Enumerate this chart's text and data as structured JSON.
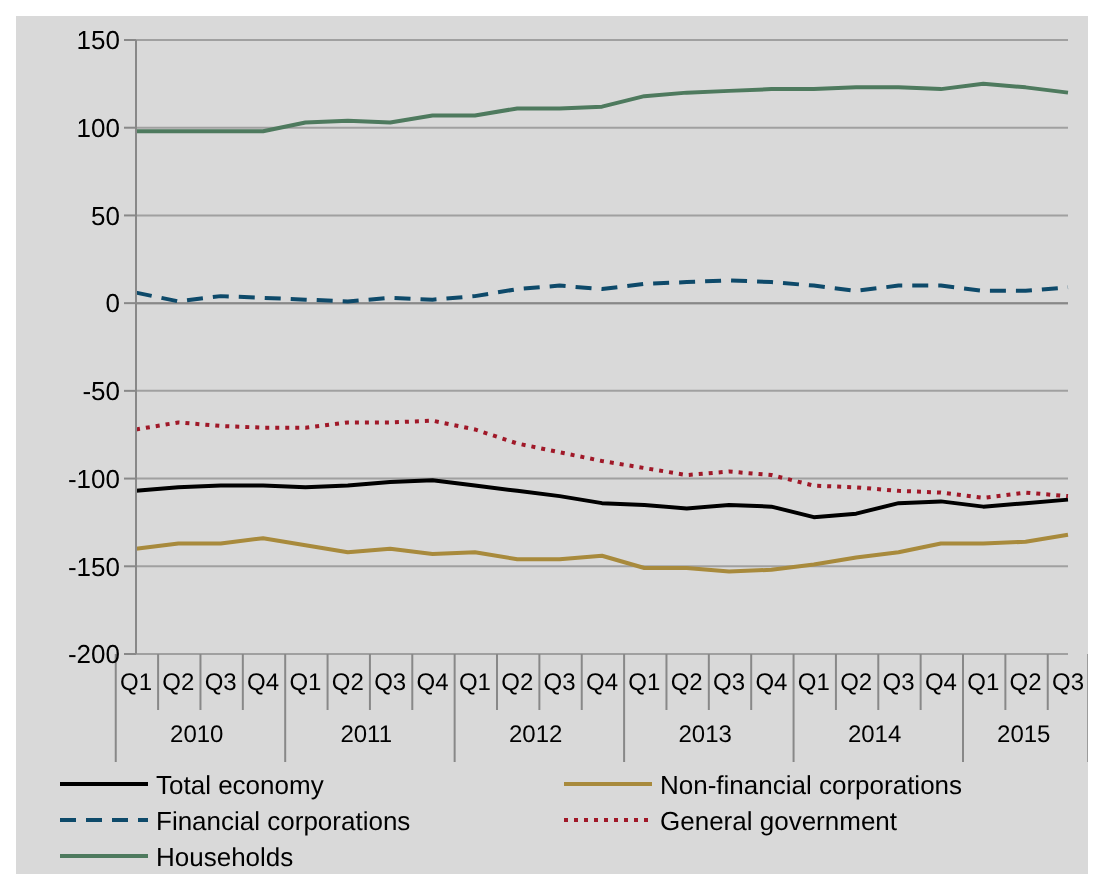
{
  "chart_data": {
    "type": "line",
    "categories": [
      "Q1",
      "Q2",
      "Q3",
      "Q4",
      "Q1",
      "Q2",
      "Q3",
      "Q4",
      "Q1",
      "Q2",
      "Q3",
      "Q4",
      "Q1",
      "Q2",
      "Q3",
      "Q4",
      "Q1",
      "Q2",
      "Q3",
      "Q4",
      "Q1",
      "Q2",
      "Q3"
    ],
    "annotations": [
      "2010",
      "2011",
      "2012",
      "2013",
      "2014",
      "2015"
    ],
    "series": [
      {
        "name": "Total economy",
        "color": "#000000",
        "line_style": "solid",
        "values": [
          -107,
          -105,
          -104,
          -104,
          -105,
          -104,
          -102,
          -101,
          -104,
          -107,
          -110,
          -114,
          -115,
          -117,
          -115,
          -116,
          -122,
          -120,
          -114,
          -113,
          -116,
          -114,
          -112
        ]
      },
      {
        "name": "Non-financial corporations",
        "color": "#a88a3c",
        "line_style": "solid",
        "values": [
          -140,
          -137,
          -137,
          -134,
          -138,
          -142,
          -140,
          -143,
          -142,
          -146,
          -146,
          -144,
          -151,
          -151,
          -153,
          -152,
          -149,
          -145,
          -142,
          -137,
          -137,
          -136,
          -132
        ]
      },
      {
        "name": "Financial corporations",
        "color": "#0e4a6a",
        "line_style": "dashed",
        "values": [
          6,
          1,
          4,
          3,
          2,
          1,
          3,
          2,
          4,
          8,
          10,
          8,
          11,
          12,
          13,
          12,
          10,
          7,
          10,
          10,
          7,
          7,
          9
        ]
      },
      {
        "name": "General government",
        "color": "#a01828",
        "line_style": "dotted",
        "values": [
          -72,
          -68,
          -70,
          -71,
          -71,
          -68,
          -68,
          -67,
          -72,
          -80,
          -85,
          -90,
          -94,
          -98,
          -96,
          -98,
          -104,
          -105,
          -107,
          -108,
          -111,
          -108,
          -110
        ]
      },
      {
        "name": "Households",
        "color": "#4e7a5e",
        "line_style": "solid",
        "values": [
          98,
          98,
          98,
          98,
          103,
          104,
          103,
          107,
          107,
          111,
          111,
          112,
          118,
          120,
          121,
          122,
          122,
          123,
          123,
          122,
          125,
          123,
          120
        ]
      }
    ],
    "ylim": [
      -200,
      150
    ],
    "yticks": [
      -200,
      -150,
      -100,
      -50,
      0,
      50,
      100,
      150
    ],
    "grid": "y",
    "legend": "bottom",
    "marker": "none"
  }
}
